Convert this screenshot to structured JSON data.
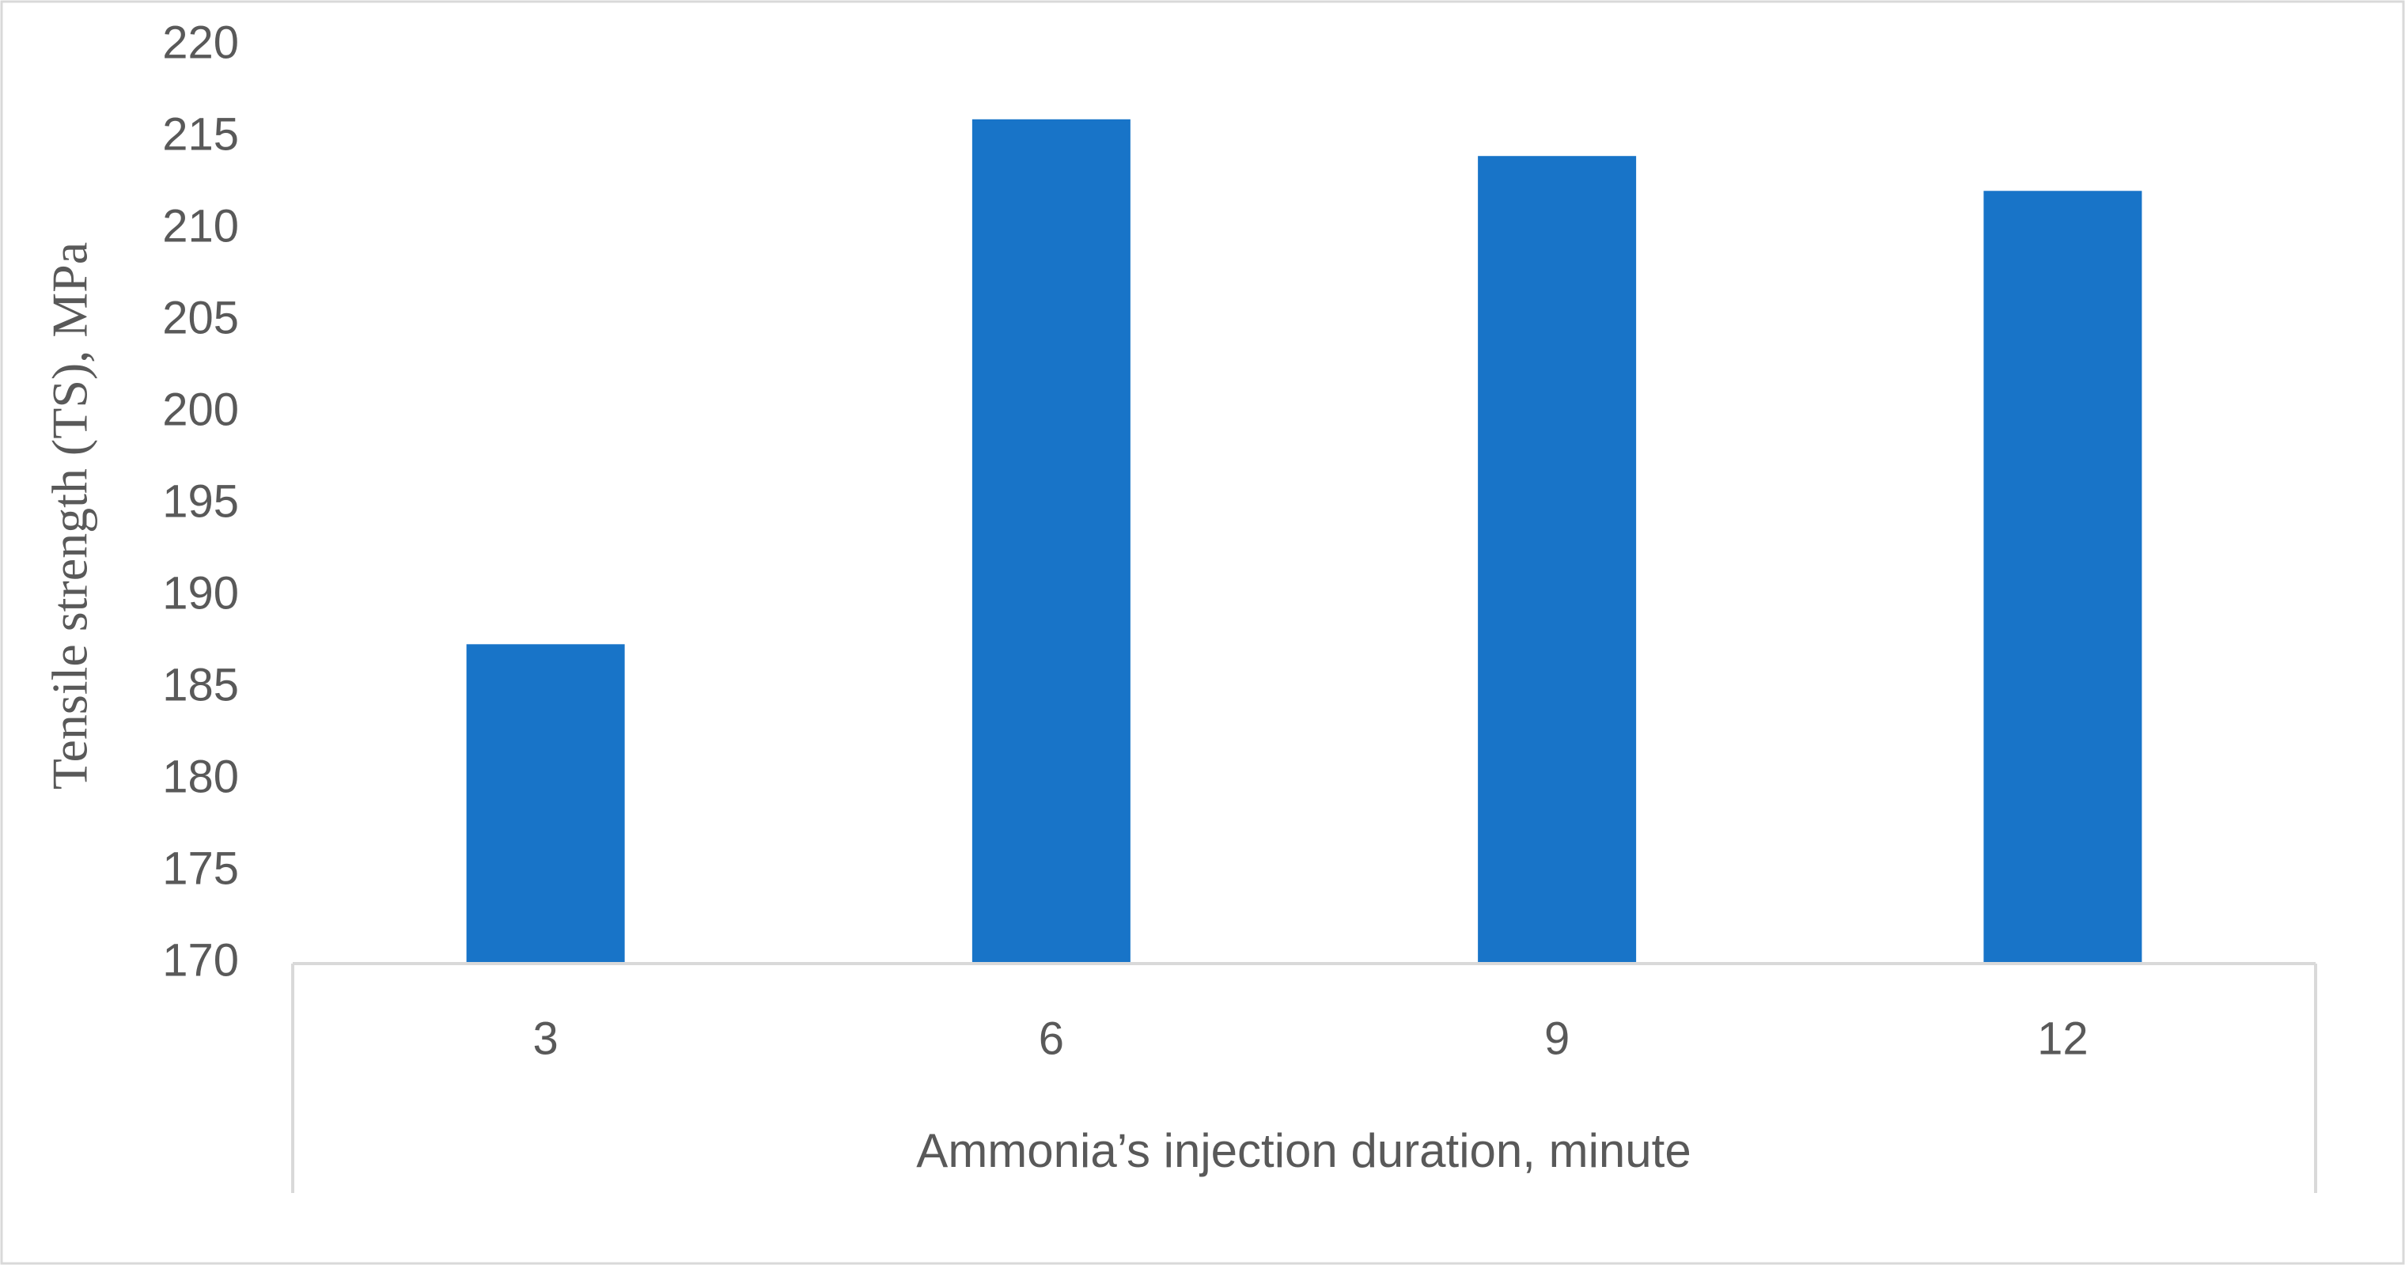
{
  "chart_data": {
    "type": "bar",
    "x_label": "Ammonia’s injection duration, minute",
    "y_label": "Tensile strength (TS), MPa",
    "categories": [
      "3",
      "6",
      "9",
      "12"
    ],
    "values": [
      187.4,
      216,
      214,
      212.1
    ],
    "color": "#1874c8",
    "ylim": [
      170,
      220
    ],
    "yticks": [
      170,
      175,
      180,
      185,
      190,
      195,
      200,
      205,
      210,
      215,
      220
    ],
    "grid": false
  }
}
